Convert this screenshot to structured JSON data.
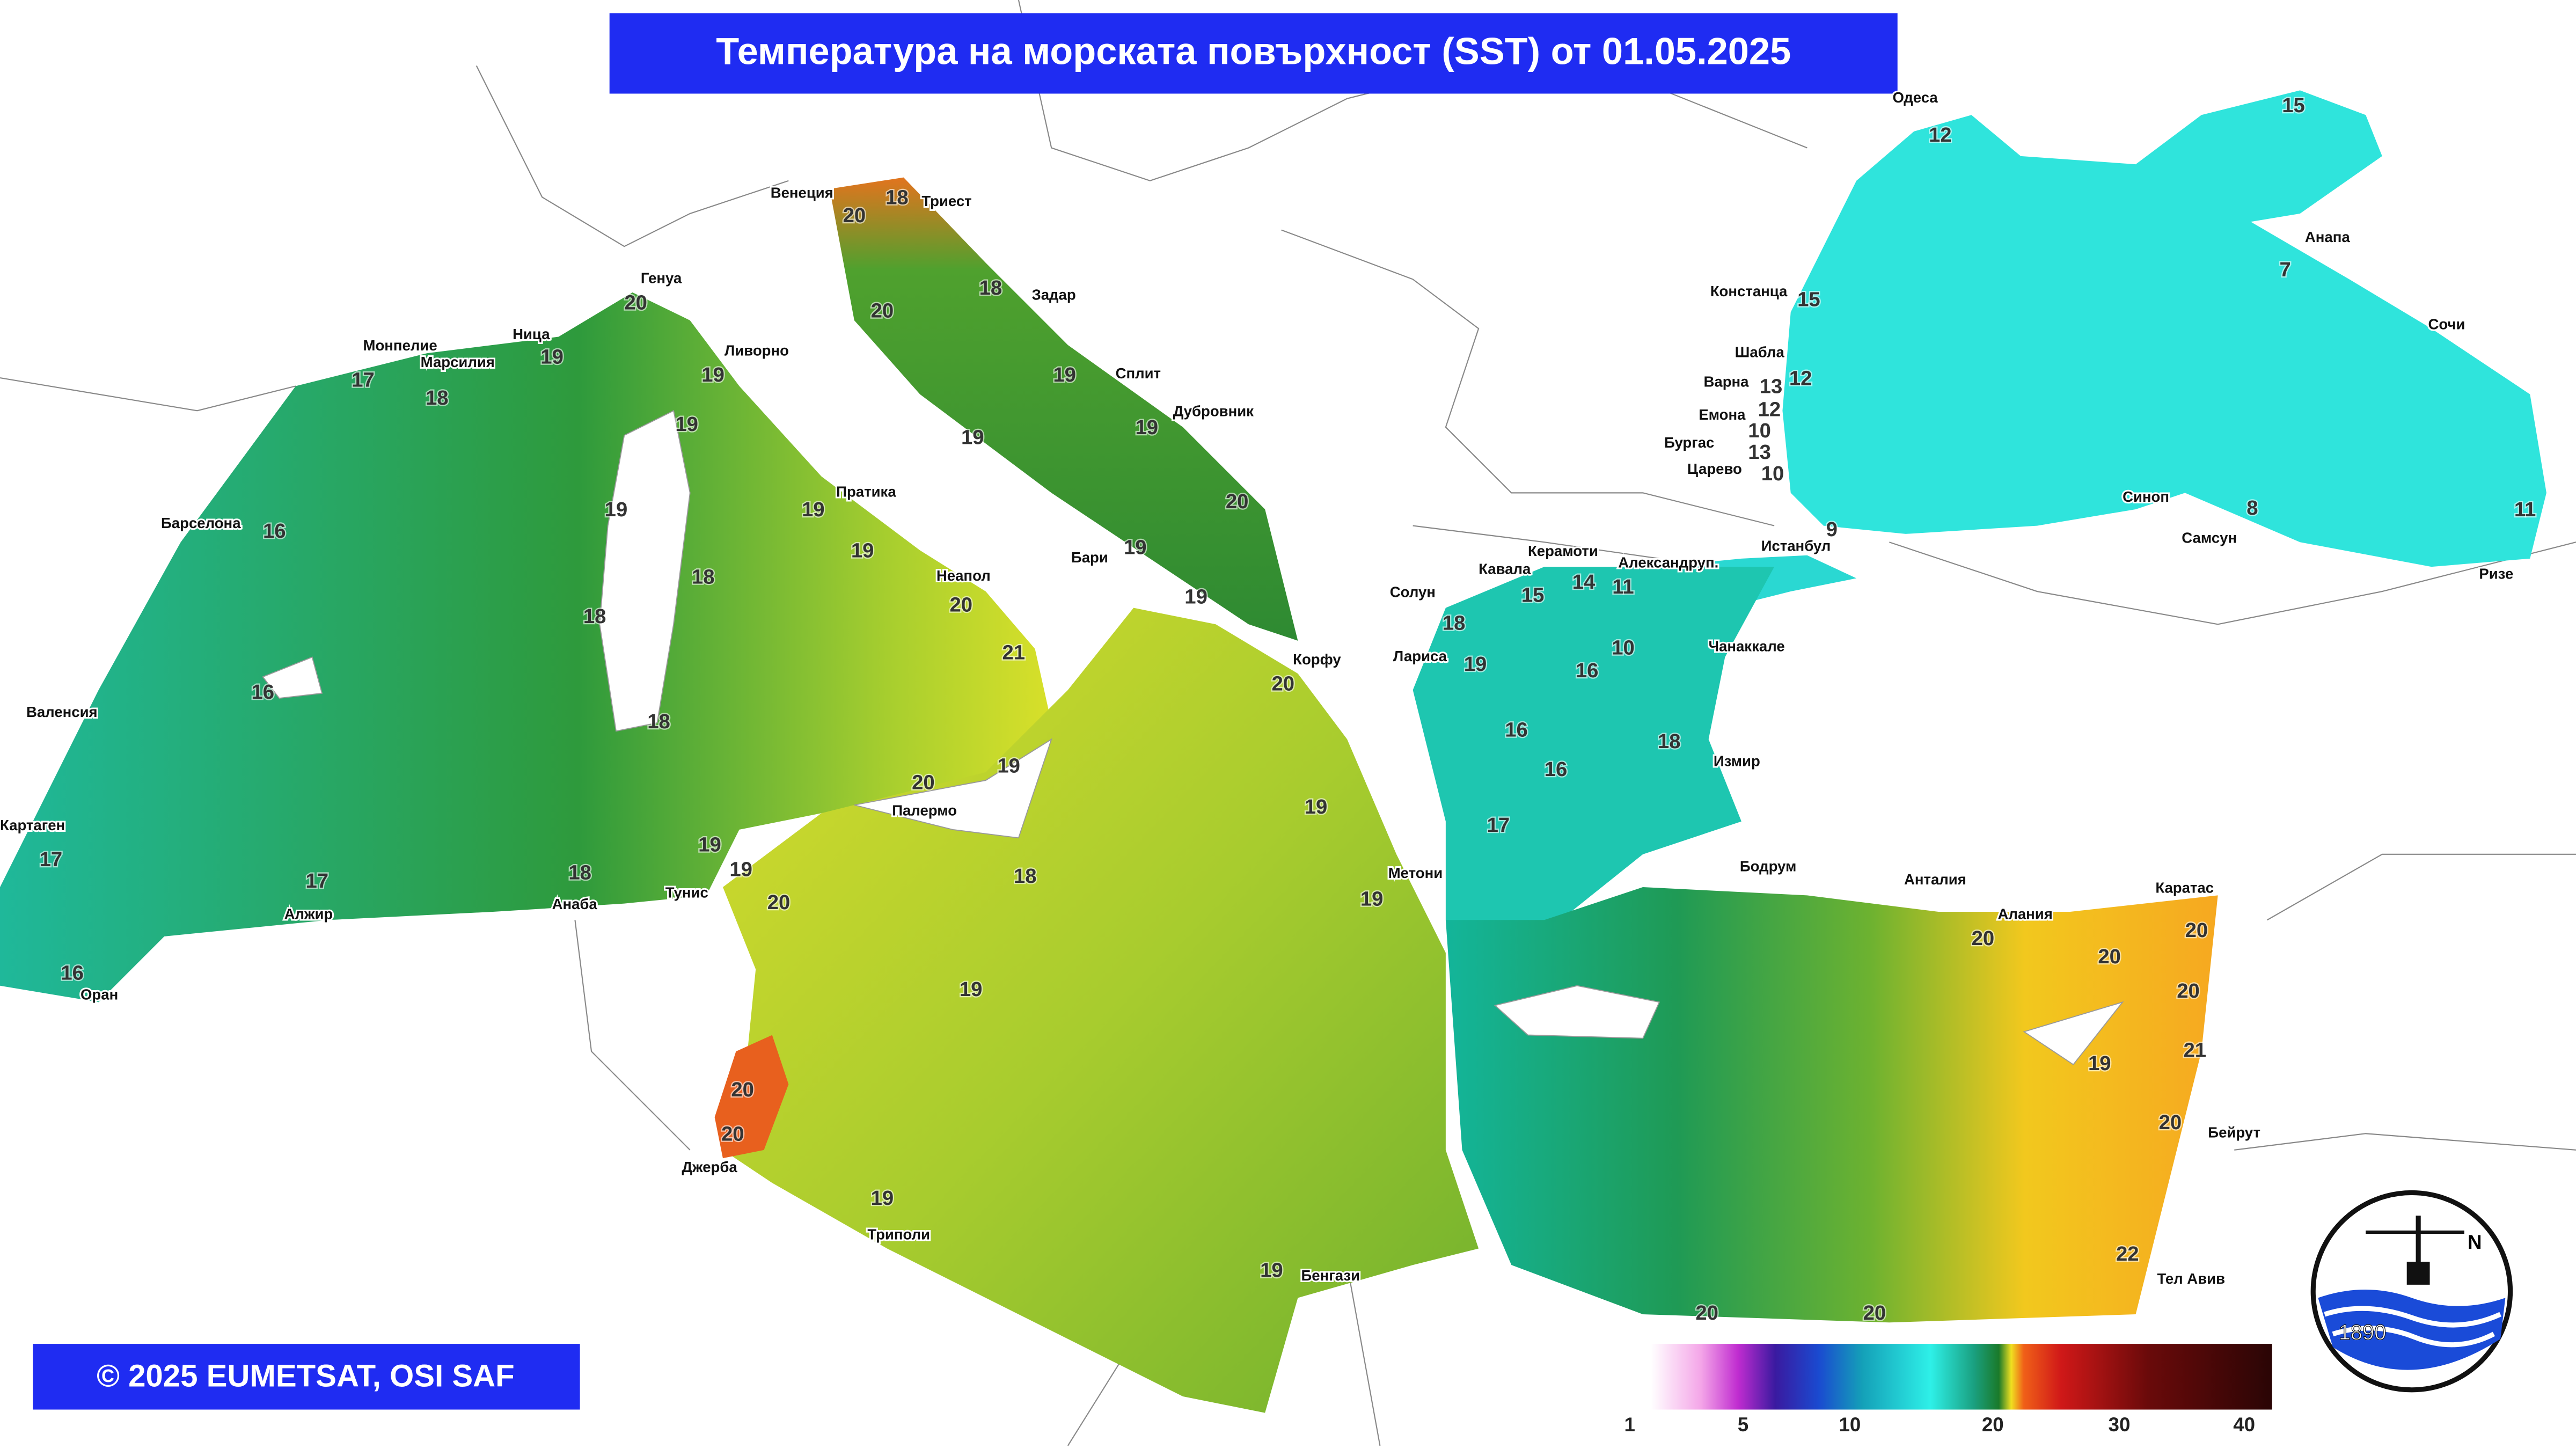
{
  "title": "Температура на морската повърхност (SST) от 01.05.2025",
  "copyright": "© 2025 EUMETSAT, OSI SAF",
  "logo_year": "1890",
  "logo_letter": "N",
  "colorbar": {
    "ticks": [
      1,
      5,
      10,
      20,
      30,
      40
    ]
  },
  "places": [
    "Одеса",
    "Анапа",
    "Сочи",
    "Констанца",
    "Шабла",
    "Варна",
    "Емона",
    "Бургас",
    "Царево",
    "Истанбул",
    "Синоп",
    "Самсун",
    "Ризе",
    "Александруп.",
    "Керамоти",
    "Кавала",
    "Солун",
    "Лариса",
    "Чанаккале",
    "Измир",
    "Бодрум",
    "Метони",
    "Корфу",
    "Венеция",
    "Триест",
    "Задар",
    "Сплит",
    "Дубровник",
    "Бари",
    "Неапол",
    "Пратика",
    "Генуа",
    "Ливорно",
    "Ница",
    "Монпелие",
    "Марсилия",
    "Барселона",
    "Валенсия",
    "Картаген",
    "Алжир",
    "Оран",
    "Анаба",
    "Тунис",
    "Палермо",
    "Джерба",
    "Триполи",
    "Бенгази",
    "Анталия",
    "Алания",
    "Каратас",
    "Бейрут",
    "Тел Авив"
  ],
  "temperatures": [
    12,
    15,
    7,
    15,
    12,
    13,
    12,
    10,
    13,
    10,
    9,
    8,
    11,
    15,
    14,
    11,
    10,
    16,
    18,
    19,
    16,
    16,
    18,
    17,
    20,
    18,
    20,
    18,
    19,
    19,
    19,
    20,
    19,
    19,
    20,
    19,
    19,
    20,
    19,
    17,
    18,
    19,
    19,
    19,
    18,
    18,
    18,
    19,
    19,
    20,
    21,
    19,
    20,
    16,
    16,
    17,
    17,
    16,
    18,
    19,
    19,
    20,
    18,
    19,
    20,
    20,
    19,
    19,
    20,
    20,
    20,
    20,
    21,
    19,
    20,
    22,
    20,
    20
  ]
}
